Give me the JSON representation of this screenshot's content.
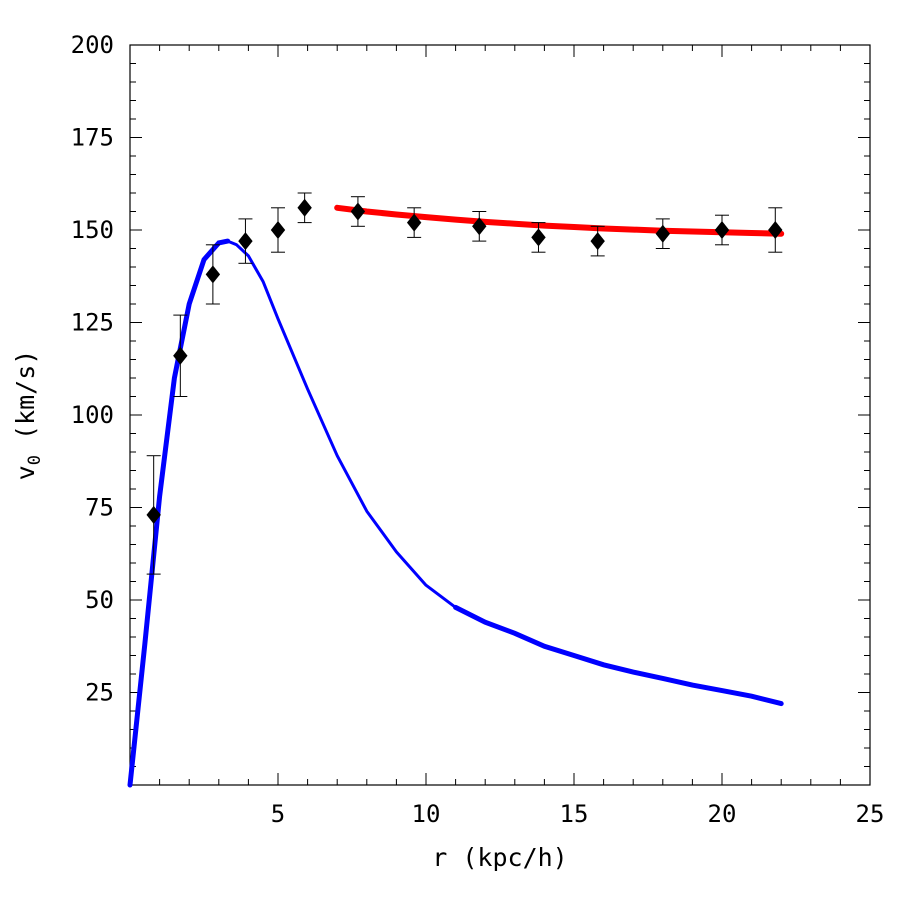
{
  "chart_data": {
    "type": "scatter",
    "title": "",
    "xlabel": "r (kpc/h)",
    "ylabel_main": "v",
    "ylabel_sub": "0",
    "ylabel_unit": "(km/s)",
    "xlim": [
      0,
      25
    ],
    "ylim": [
      0,
      200
    ],
    "xticks": [
      5,
      10,
      15,
      20,
      25
    ],
    "yticks": [
      25,
      50,
      75,
      100,
      125,
      150,
      175,
      200
    ],
    "grid": false,
    "series": [
      {
        "kind": "points_errorbars",
        "marker": "diamond",
        "color": "#000000",
        "points": [
          {
            "x": 0.8,
            "y": 73,
            "err": 16
          },
          {
            "x": 1.7,
            "y": 116,
            "err": 11
          },
          {
            "x": 2.8,
            "y": 138,
            "err": 8
          },
          {
            "x": 3.9,
            "y": 147,
            "err": 6
          },
          {
            "x": 5.0,
            "y": 150,
            "err": 6
          },
          {
            "x": 5.9,
            "y": 156,
            "err": 4
          },
          {
            "x": 7.7,
            "y": 155,
            "err": 4
          },
          {
            "x": 9.6,
            "y": 152,
            "err": 4
          },
          {
            "x": 11.8,
            "y": 151,
            "err": 4
          },
          {
            "x": 13.8,
            "y": 148,
            "err": 4
          },
          {
            "x": 15.8,
            "y": 147,
            "err": 4
          },
          {
            "x": 18.0,
            "y": 149,
            "err": 4
          },
          {
            "x": 20.0,
            "y": 150,
            "err": 4
          },
          {
            "x": 21.8,
            "y": 150,
            "err": 6
          }
        ]
      },
      {
        "kind": "curve",
        "color": "#0000ff",
        "x": [
          0,
          0.5,
          1,
          1.5,
          2,
          2.5,
          3,
          3.3,
          3.6,
          4,
          4.5,
          5,
          6,
          7,
          8,
          9,
          10,
          11,
          12,
          13,
          14,
          15,
          16,
          17,
          18,
          19,
          20,
          21,
          22
        ],
        "y": [
          0,
          38,
          78,
          110,
          130,
          142,
          146.5,
          147,
          146,
          143,
          136,
          126,
          107,
          89,
          74,
          63,
          54,
          48,
          44,
          41,
          37.5,
          35,
          32.5,
          30.5,
          28.8,
          27,
          25.5,
          24,
          22
        ]
      },
      {
        "kind": "curve",
        "color": "#ff0000",
        "x": [
          7,
          8,
          9,
          10,
          11,
          12,
          13,
          14,
          15,
          16,
          17,
          18,
          19,
          20,
          21,
          22
        ],
        "y": [
          156,
          155,
          154.2,
          153.5,
          152.8,
          152.2,
          151.7,
          151.2,
          150.8,
          150.4,
          150.1,
          149.8,
          149.6,
          149.4,
          149.2,
          149
        ]
      }
    ]
  }
}
